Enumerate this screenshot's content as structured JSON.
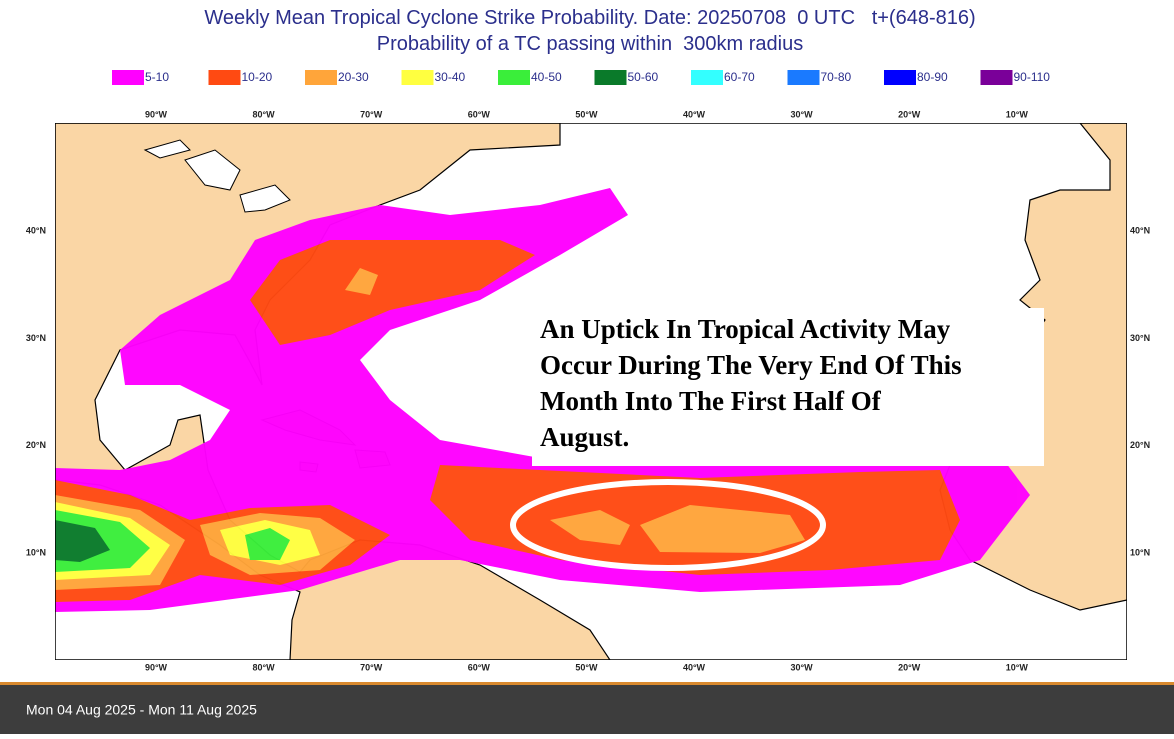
{
  "header": {
    "title": "Weekly Mean Tropical Cyclone Strike Probability. Date: 20250708  0 UTC   t+(648-816)",
    "subtitle": "Probability of a TC passing within  300km radius"
  },
  "legend": {
    "items": [
      {
        "label": "5-10",
        "color": "#ff00ff"
      },
      {
        "label": "10-20",
        "color": "#ff4a12"
      },
      {
        "label": "20-30",
        "color": "#ffa53a"
      },
      {
        "label": "30-40",
        "color": "#ffff40"
      },
      {
        "label": "40-50",
        "color": "#3aee3a"
      },
      {
        "label": "50-60",
        "color": "#0a7a2a"
      },
      {
        "label": "60-70",
        "color": "#33ffff"
      },
      {
        "label": "70-80",
        "color": "#1a7aff"
      },
      {
        "label": "80-90",
        "color": "#0000ff"
      },
      {
        "label": "90-110",
        "color": "#7a0099"
      }
    ]
  },
  "map": {
    "lon_labels": [
      "90°W",
      "80°W",
      "70°W",
      "60°W",
      "50°W",
      "40°W",
      "30°W",
      "20°W",
      "10°W"
    ],
    "lat_labels": [
      "40°N",
      "30°N",
      "20°N",
      "10°N"
    ]
  },
  "annotation": {
    "lines": [
      "An Uptick In Tropical Activity May",
      "Occur During The Very End Of This",
      "Month Into The First Half Of",
      "August."
    ]
  },
  "footer": {
    "date_range": "Mon 04 Aug 2025 - Mon 11 Aug 2025"
  }
}
